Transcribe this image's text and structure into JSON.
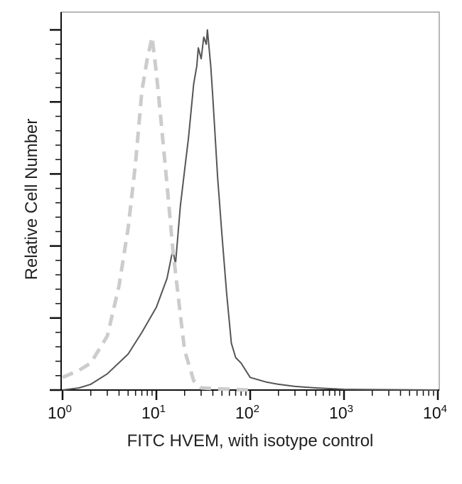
{
  "chart_data": {
    "type": "line",
    "title": "",
    "xlabel": "FITC HVEM, with isotype control",
    "ylabel": "Relative Cell Number",
    "x_scale": "log",
    "xlim": [
      1,
      10000
    ],
    "ylim": [
      0,
      100
    ],
    "x_ticks": [
      {
        "base": "10",
        "exp": "0",
        "value": 1
      },
      {
        "base": "10",
        "exp": "1",
        "value": 10
      },
      {
        "base": "10",
        "exp": "2",
        "value": 100
      },
      {
        "base": "10",
        "exp": "3",
        "value": 1000
      },
      {
        "base": "10",
        "exp": "4",
        "value": 10000
      }
    ],
    "y_major_ticks": [
      0,
      20,
      40,
      60,
      80,
      100
    ],
    "y_tick_labels_shown": false,
    "grid": false,
    "legend": "none",
    "series": [
      {
        "style": "solid",
        "color": "#555555",
        "points": [
          [
            1,
            0
          ],
          [
            1.5,
            0.6
          ],
          [
            2,
            1.6
          ],
          [
            3,
            4.5
          ],
          [
            5,
            10
          ],
          [
            7,
            16
          ],
          [
            10,
            23
          ],
          [
            13,
            31
          ],
          [
            15,
            39
          ],
          [
            16,
            35
          ],
          [
            18,
            51
          ],
          [
            20,
            61
          ],
          [
            22,
            70
          ],
          [
            25,
            85
          ],
          [
            27,
            90
          ],
          [
            28,
            95
          ],
          [
            30,
            92
          ],
          [
            32,
            98
          ],
          [
            34,
            96
          ],
          [
            35,
            100
          ],
          [
            38,
            90
          ],
          [
            40,
            81
          ],
          [
            45,
            59
          ],
          [
            50,
            43
          ],
          [
            56,
            27
          ],
          [
            63,
            13
          ],
          [
            70,
            9
          ],
          [
            80,
            7.5
          ],
          [
            100,
            3.5
          ],
          [
            150,
            2.2
          ],
          [
            200,
            1.6
          ],
          [
            300,
            1.0
          ],
          [
            500,
            0.6
          ],
          [
            1000,
            0.2
          ],
          [
            3000,
            0.1
          ],
          [
            10000,
            0
          ]
        ]
      },
      {
        "style": "dashed",
        "color": "#cccccc",
        "points": [
          [
            1,
            3.5
          ],
          [
            1.5,
            5.5
          ],
          [
            2,
            7.5
          ],
          [
            3,
            15
          ],
          [
            4,
            29
          ],
          [
            5,
            45
          ],
          [
            6,
            63
          ],
          [
            7,
            83
          ],
          [
            8,
            92
          ],
          [
            9,
            98
          ],
          [
            10,
            88
          ],
          [
            11,
            77
          ],
          [
            13,
            57
          ],
          [
            15,
            39
          ],
          [
            18,
            21
          ],
          [
            20,
            11
          ],
          [
            25,
            2.6
          ],
          [
            30,
            0.6
          ],
          [
            50,
            0.3
          ],
          [
            100,
            0
          ]
        ]
      }
    ]
  }
}
